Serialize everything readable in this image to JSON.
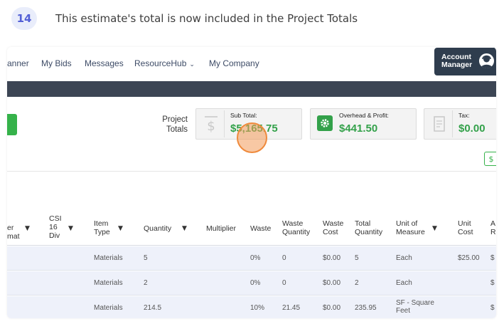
{
  "step": {
    "number": "14",
    "caption": "This estimate's total is now included in the Project Totals"
  },
  "nav": {
    "items": [
      "anner",
      "My Bids",
      "Messages",
      "ResourceHub",
      "My Company"
    ],
    "account_label": "Account Manager"
  },
  "project_totals": {
    "label": "Project Totals",
    "subtotal_label": "Sub Total:",
    "subtotal_value": "$5,165.75",
    "overhead_label": "Overhead & Profit:",
    "overhead_value": "$441.50",
    "tax_label": "Tax:",
    "tax_value": "$0.00",
    "small_button_glyph": "$"
  },
  "table": {
    "headers": [
      "er mat",
      "CSI 16 Div",
      "Item Type",
      "Quantity",
      "Multiplier",
      "Waste",
      "Waste Quantity",
      "Waste Cost",
      "Total Quantity",
      "Unit of Measure",
      "Unit Cost",
      "A R"
    ],
    "rows": [
      {
        "item_type": "Materials",
        "quantity": "5",
        "waste": "0%",
        "waste_quantity": "0",
        "waste_cost": "$0.00",
        "total_quantity": "5",
        "unit": "Each",
        "unit_cost": "$25.00",
        "extra": "$"
      },
      {
        "item_type": "Materials",
        "quantity": "2",
        "waste": "0%",
        "waste_quantity": "0",
        "waste_cost": "$0.00",
        "total_quantity": "2",
        "unit": "Each",
        "unit_cost": "",
        "extra": "$"
      },
      {
        "item_type": "Materials",
        "quantity": "214.5",
        "waste": "10%",
        "waste_quantity": "21.45",
        "waste_cost": "$0.00",
        "total_quantity": "235.95",
        "unit": "SF - Square Feet",
        "unit_cost": "",
        "extra": "$"
      }
    ]
  },
  "colors": {
    "accent_green": "#33a14a",
    "nav_dark": "#2f3d4e",
    "step_badge": "#5360d6"
  }
}
